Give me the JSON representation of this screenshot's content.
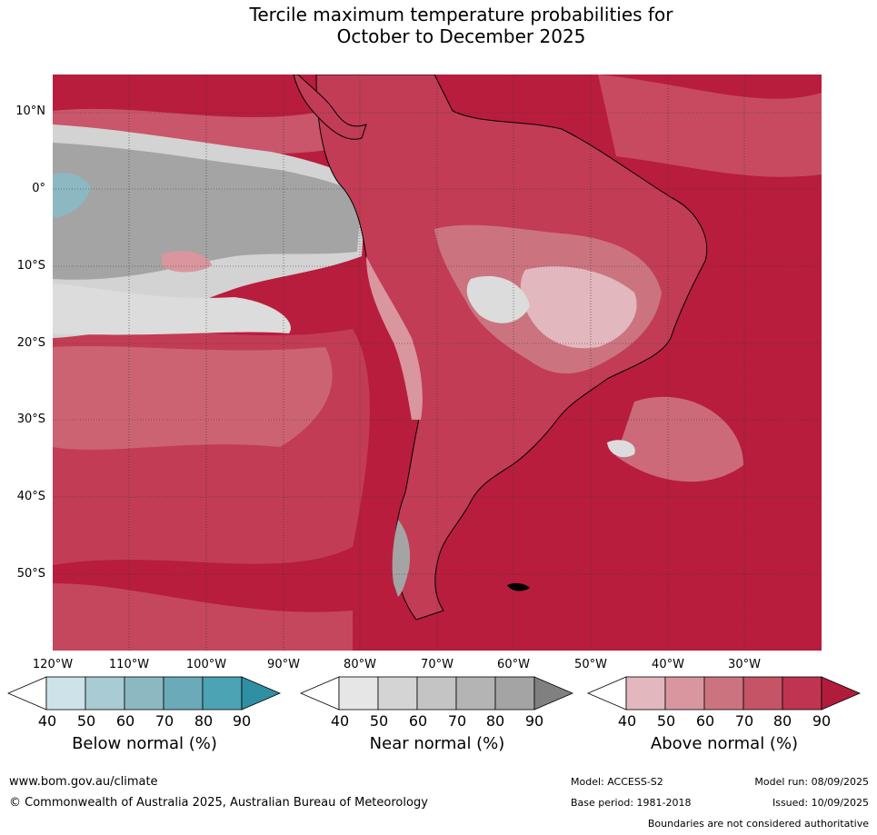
{
  "title": {
    "line1": "Tercile maximum temperature probabilities for",
    "line2": "October to December 2025"
  },
  "map": {
    "lat_labels": [
      "10°N",
      "0°",
      "10°S",
      "20°S",
      "30°S",
      "40°S",
      "50°S"
    ],
    "lon_labels": [
      "120°W",
      "110°W",
      "100°W",
      "90°W",
      "80°W",
      "70°W",
      "60°W",
      "50°W",
      "40°W",
      "30°W"
    ],
    "ocean_base_color": "#c2344f",
    "land_border_color": "#000000",
    "country_border_color": "#888888"
  },
  "legends": [
    {
      "title": "Below normal (%)",
      "ticks": [
        "40",
        "50",
        "60",
        "70",
        "80",
        "90"
      ],
      "colors": [
        "#ffffff",
        "#cde3e9",
        "#a9cbd3",
        "#8cb8c2",
        "#6aaab9",
        "#4ba3b4",
        "#2f8fa3"
      ]
    },
    {
      "title": "Near normal (%)",
      "ticks": [
        "40",
        "50",
        "60",
        "70",
        "80",
        "90"
      ],
      "colors": [
        "#ffffff",
        "#e6e6e6",
        "#d4d4d4",
        "#c4c4c4",
        "#b4b4b4",
        "#a4a4a4",
        "#808080"
      ]
    },
    {
      "title": "Above normal (%)",
      "ticks": [
        "40",
        "50",
        "60",
        "70",
        "80",
        "90"
      ],
      "colors": [
        "#ffffff",
        "#e2b7bd",
        "#d9969f",
        "#cb7480",
        "#c45466",
        "#bf3450",
        "#b11c3c"
      ]
    }
  ],
  "footer": {
    "url": "www.bom.gov.au/climate",
    "copyright": "© Commonwealth of Australia 2025, Australian Bureau of Meteorology",
    "model": "Model: ACCESS-S2",
    "model_run": "Model run: 08/09/2025",
    "base_period": "Base period: 1981-2018",
    "issued": "Issued: 10/09/2025",
    "disclaimer": "Boundaries are not considered authoritative"
  }
}
